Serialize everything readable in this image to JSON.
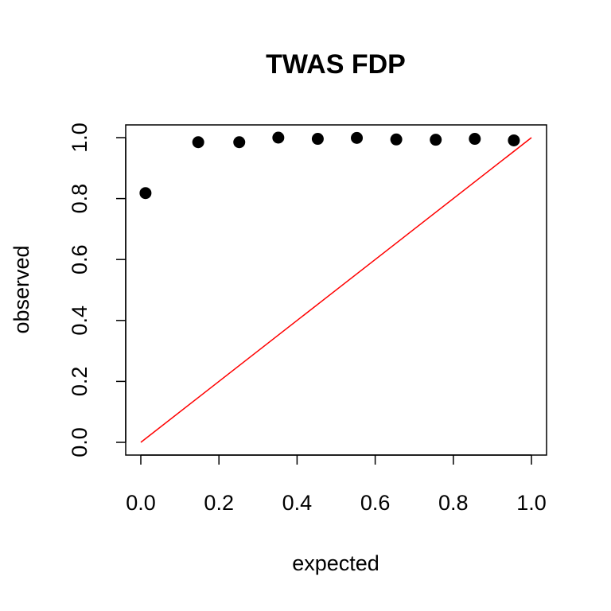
{
  "chart_data": {
    "type": "scatter",
    "title": "TWAS FDP",
    "xlabel": "expected",
    "ylabel": "observed",
    "xlim": [
      0.0,
      1.0
    ],
    "ylim": [
      0.0,
      1.0
    ],
    "xticks": [
      "0.0",
      "0.2",
      "0.4",
      "0.6",
      "0.8",
      "1.0"
    ],
    "yticks": [
      "0.0",
      "0.2",
      "0.4",
      "0.6",
      "0.8",
      "1.0"
    ],
    "grid": false,
    "points": [
      {
        "x": 0.012,
        "y": 0.818
      },
      {
        "x": 0.147,
        "y": 0.985
      },
      {
        "x": 0.252,
        "y": 0.985
      },
      {
        "x": 0.352,
        "y": 1.0
      },
      {
        "x": 0.453,
        "y": 0.996
      },
      {
        "x": 0.553,
        "y": 0.999
      },
      {
        "x": 0.654,
        "y": 0.994
      },
      {
        "x": 0.755,
        "y": 0.993
      },
      {
        "x": 0.855,
        "y": 0.996
      },
      {
        "x": 0.955,
        "y": 0.991
      }
    ],
    "point_color": "#000000",
    "reference_line": {
      "type": "identity",
      "from": [
        0.0,
        0.0
      ],
      "to": [
        1.0,
        1.0
      ],
      "color": "#ff0000"
    }
  }
}
